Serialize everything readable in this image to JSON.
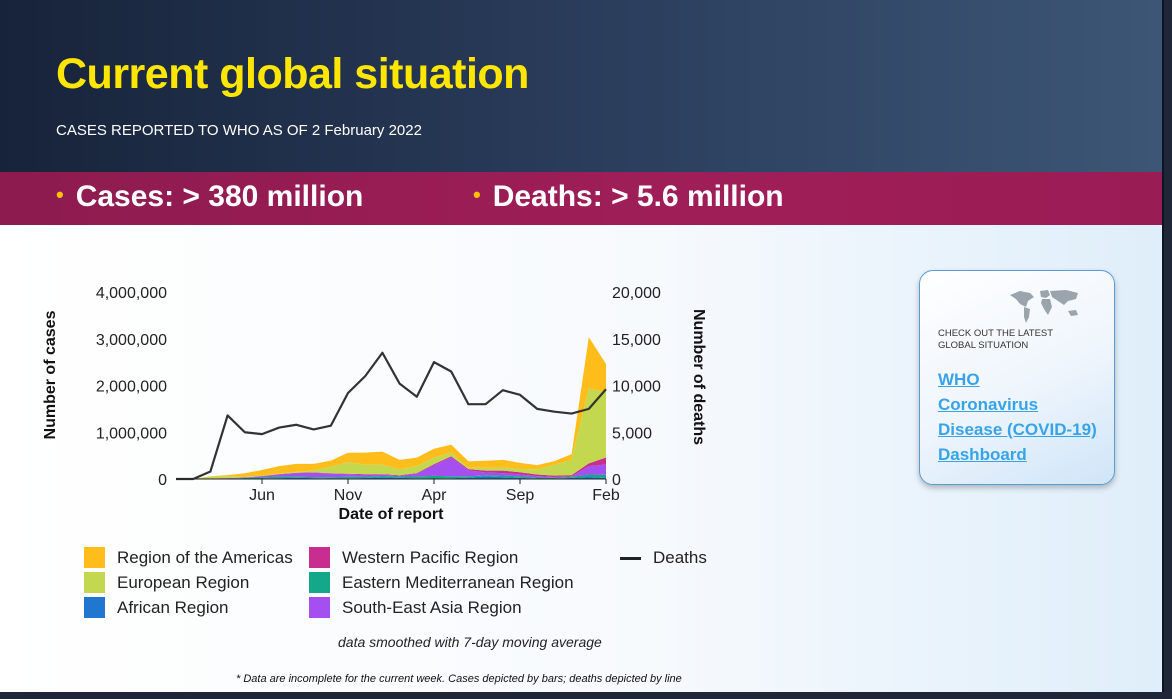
{
  "slide": {
    "title": "Current global situation",
    "subtitle": "CASES REPORTED TO WHO AS OF 2 February 2022",
    "stats": {
      "cases": "Cases:  > 380 million",
      "deaths": "Deaths: > 5.6 million"
    },
    "bullet": "•",
    "smoothing_note": "data smoothed with 7-day moving average",
    "footnote": "* Data are incomplete for the current week. Cases depicted by bars; deaths depicted by line",
    "colors": {
      "title": "#ffe600",
      "band": "#9a1c55",
      "header": "#283a58",
      "link": "#38a3e8"
    }
  },
  "card": {
    "icon": "world-map-icon",
    "checkout_text": "CHECK OUT THE LATEST GLOBAL SITUATION",
    "link_lines": [
      "WHO",
      "Coronavirus",
      "Disease (COVID-19)",
      "Dashboard"
    ]
  },
  "chart_data": {
    "type": "area",
    "xlabel": "Date of report",
    "ylabel": "Number of cases",
    "y2label": "Number of deaths",
    "ylim": [
      0,
      4000000
    ],
    "y2lim": [
      0,
      20000
    ],
    "yticks": [
      0,
      1000000,
      2000000,
      3000000,
      4000000
    ],
    "ytick_labels": [
      "0",
      "1,000,000",
      "2,000,000",
      "3,000,000",
      "4,000,000"
    ],
    "y2ticks": [
      0,
      5000,
      10000,
      15000,
      20000
    ],
    "y2tick_labels": [
      "0",
      "5,000",
      "10,000",
      "15,000",
      "20,000"
    ],
    "xtick_labels": [
      "Jun",
      "Nov",
      "Apr",
      "Sep",
      "Feb"
    ],
    "xticks": [
      "2020-06",
      "2020-11",
      "2021-04",
      "2021-09",
      "2022-02"
    ],
    "x": [
      "2020-01",
      "2020-02",
      "2020-03",
      "2020-04",
      "2020-05",
      "2020-06",
      "2020-07",
      "2020-08",
      "2020-09",
      "2020-10",
      "2020-11",
      "2020-12",
      "2021-01",
      "2021-02",
      "2021-03",
      "2021-04",
      "2021-05",
      "2021-06",
      "2021-07",
      "2021-08",
      "2021-09",
      "2021-10",
      "2021-11",
      "2021-12",
      "2022-01",
      "2022-02"
    ],
    "series": [
      {
        "name": "African Region",
        "color": "#1f77d0",
        "values": [
          0,
          0,
          1000,
          3000,
          6000,
          10000,
          20000,
          25000,
          18000,
          12000,
          14000,
          22000,
          40000,
          25000,
          15000,
          12000,
          15000,
          30000,
          55000,
          40000,
          25000,
          12000,
          10000,
          25000,
          45000,
          20000
        ]
      },
      {
        "name": "Eastern Mediterranean Region",
        "color": "#14a88a",
        "values": [
          0,
          0,
          2000,
          6000,
          15000,
          25000,
          30000,
          25000,
          22000,
          25000,
          35000,
          30000,
          25000,
          25000,
          40000,
          55000,
          45000,
          25000,
          25000,
          35000,
          30000,
          20000,
          18000,
          20000,
          50000,
          70000
        ]
      },
      {
        "name": "South-East Asia Region",
        "color": "#a64ff0",
        "values": [
          0,
          0,
          1000,
          4000,
          10000,
          25000,
          50000,
          75000,
          95000,
          80000,
          55000,
          40000,
          25000,
          20000,
          60000,
          230000,
          400000,
          130000,
          60000,
          50000,
          45000,
          30000,
          15000,
          12000,
          180000,
          220000
        ]
      },
      {
        "name": "Western Pacific Region",
        "color": "#c72e8f",
        "values": [
          0,
          5000,
          6000,
          5000,
          3000,
          3000,
          5000,
          8000,
          8000,
          6000,
          8000,
          12000,
          15000,
          10000,
          12000,
          20000,
          25000,
          25000,
          40000,
          55000,
          45000,
          35000,
          30000,
          25000,
          60000,
          150000
        ]
      },
      {
        "name": "European Region",
        "color": "#c4d84f",
        "values": [
          0,
          0,
          40000,
          40000,
          20000,
          10000,
          10000,
          20000,
          40000,
          140000,
          250000,
          200000,
          200000,
          130000,
          150000,
          140000,
          80000,
          30000,
          60000,
          70000,
          70000,
          110000,
          230000,
          330000,
          1600000,
          1400000
        ]
      },
      {
        "name": "Region of the Americas",
        "color": "#ffbd1b",
        "values": [
          0,
          0,
          5000,
          25000,
          70000,
          120000,
          160000,
          170000,
          140000,
          130000,
          200000,
          260000,
          280000,
          200000,
          180000,
          190000,
          170000,
          140000,
          150000,
          160000,
          130000,
          90000,
          80000,
          120000,
          1100000,
          600000
        ]
      }
    ],
    "deaths": {
      "name": "Deaths",
      "color": "#333333",
      "values": [
        0,
        0,
        800,
        6800,
        5000,
        4800,
        5500,
        5800,
        5300,
        5700,
        9200,
        11000,
        13500,
        10200,
        8800,
        12500,
        11500,
        8000,
        8000,
        9500,
        9000,
        7500,
        7200,
        7000,
        7500,
        9600
      ]
    },
    "legend_position": "bottom",
    "legend_layout": [
      [
        "Region of the Americas",
        "European Region",
        "African Region"
      ],
      [
        "Western Pacific Region",
        "Eastern Mediterranean Region",
        "South-East Asia Region"
      ],
      [
        "Deaths"
      ]
    ],
    "grid": false
  }
}
